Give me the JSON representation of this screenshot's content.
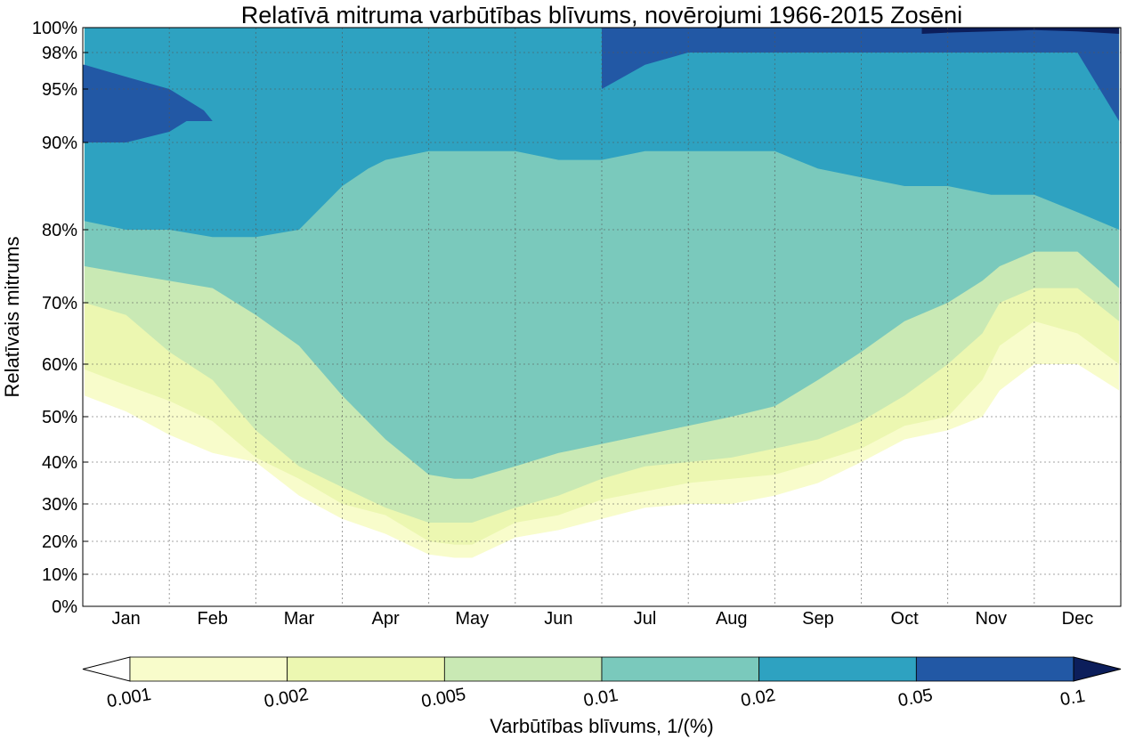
{
  "chart_data": {
    "type": "contour",
    "title": "Relatīvā mitruma varbūtības blīvums, novērojumi 1966-2015 Zosēni",
    "xlabel": "",
    "ylabel": "Relatīvais mitrums",
    "x_unit": "month",
    "x_range": [
      0,
      12
    ],
    "categories": [
      "Jan",
      "Feb",
      "Mar",
      "Apr",
      "May",
      "Jun",
      "Jul",
      "Aug",
      "Sep",
      "Oct",
      "Nov",
      "Dec"
    ],
    "y_scale": "probability-like (expanded near 100%)",
    "y_ticks": [
      "0%",
      "10%",
      "20%",
      "30%",
      "40%",
      "50%",
      "60%",
      "70%",
      "80%",
      "90%",
      "95%",
      "98%",
      "100%"
    ],
    "y_tick_values": [
      0,
      10,
      20,
      30,
      40,
      50,
      60,
      70,
      80,
      90,
      95,
      98,
      100
    ],
    "grid": true,
    "levels": [
      0.001,
      0.002,
      0.005,
      0.01,
      0.02,
      0.05,
      0.1
    ],
    "level_colors": [
      "#ffffff",
      "#f8fccb",
      "#ecf7b1",
      "#c9e9b4",
      "#7ac9bc",
      "#2ea2c1",
      "#2258a5",
      "#0c1e5b"
    ],
    "colorbar": {
      "label": "Varbūtības blīvums, 1/(%)",
      "tick_labels": [
        "0.001",
        "0.002",
        "0.005",
        "0.01",
        "0.02",
        "0.05",
        "0.1"
      ],
      "extend": "both",
      "orientation": "horizontal",
      "position": "bottom"
    },
    "contours": [
      {
        "level": 0.001,
        "month": [
          0.02,
          0.5,
          1.0,
          1.5,
          2.0,
          2.5,
          3.0,
          3.5,
          4.0,
          4.3,
          4.5,
          5.0,
          5.5,
          6.0,
          6.5,
          7.0,
          7.5,
          8.0,
          8.5,
          9.0,
          9.5,
          10.0,
          10.4,
          10.6,
          11.0,
          11.5,
          11.98
        ],
        "rh": [
          54,
          51,
          46,
          42,
          40,
          32,
          26,
          22,
          16,
          15,
          15,
          21,
          23,
          26,
          29,
          30,
          30,
          32,
          35,
          40,
          45,
          47,
          50,
          55,
          60,
          60,
          55
        ]
      },
      {
        "level": 0.002,
        "month": [
          0.02,
          0.5,
          1.0,
          1.5,
          2.0,
          2.5,
          3.0,
          3.5,
          4.0,
          4.3,
          4.5,
          5.0,
          5.5,
          6.0,
          6.5,
          7.0,
          7.5,
          8.0,
          8.5,
          9.0,
          9.5,
          10.0,
          10.4,
          10.6,
          11.0,
          11.5,
          11.98
        ],
        "rh": [
          59,
          56,
          53,
          49,
          41,
          36,
          30,
          27,
          20,
          19,
          19,
          25,
          27,
          31,
          33,
          35,
          36,
          37,
          40,
          43,
          48,
          50,
          57,
          63,
          67,
          65,
          60
        ]
      },
      {
        "level": 0.005,
        "month": [
          0.02,
          0.5,
          1.0,
          1.5,
          2.0,
          2.5,
          3.0,
          3.5,
          4.0,
          4.3,
          4.5,
          5.0,
          5.5,
          6.0,
          6.5,
          7.0,
          7.5,
          8.0,
          8.5,
          9.0,
          9.5,
          10.0,
          10.4,
          10.6,
          11.0,
          11.5,
          11.98
        ],
        "rh": [
          70,
          68,
          62,
          57,
          47,
          39,
          34,
          29,
          25,
          25,
          25,
          29,
          32,
          36,
          39,
          40,
          41,
          43,
          45,
          49,
          54,
          60,
          65,
          70,
          72,
          72,
          67
        ]
      },
      {
        "level": 0.01,
        "month": [
          0.02,
          0.5,
          1.0,
          1.5,
          2.0,
          2.5,
          3.0,
          3.5,
          4.0,
          4.3,
          4.5,
          5.0,
          5.5,
          6.0,
          6.5,
          7.0,
          7.5,
          8.0,
          8.5,
          9.0,
          9.5,
          10.0,
          10.4,
          10.6,
          11.0,
          11.5,
          11.98
        ],
        "rh": [
          75,
          74,
          73,
          72,
          68,
          63,
          54,
          45,
          37,
          36,
          36,
          39,
          42,
          44,
          46,
          48,
          50,
          52,
          57,
          62,
          67,
          70,
          73,
          75,
          77,
          77,
          72
        ]
      },
      {
        "level": 0.02,
        "month": [
          0.02,
          0.5,
          1.0,
          1.5,
          2.0,
          2.5,
          3.0,
          3.3,
          3.5,
          4.0,
          4.5,
          5.0,
          5.5,
          6.0,
          6.5,
          7.0,
          7.5,
          8.0,
          8.5,
          9.0,
          9.5,
          10.0,
          10.5,
          11.0,
          11.5,
          11.98
        ],
        "rh": [
          81,
          80,
          80,
          79,
          79,
          80,
          85,
          87,
          88,
          89,
          89,
          89,
          88,
          88,
          89,
          89,
          89,
          89,
          87,
          86,
          85,
          85,
          84,
          84,
          82,
          80
        ]
      },
      {
        "level": 0.05,
        "month": [
          0.02,
          0.5,
          1.0,
          1.2,
          1.4,
          1.5,
          1.2,
          1.0,
          0.5,
          0.02
        ],
        "rh": [
          97,
          96,
          95,
          94,
          93,
          92,
          92,
          91,
          90,
          90
        ]
      },
      {
        "level": 0.05,
        "month": [
          6.0,
          6.5,
          7.0,
          7.5,
          8.0,
          8.5,
          9.0,
          9.5,
          10.0,
          10.5,
          11.0,
          11.5,
          11.98
        ],
        "rh": [
          95,
          97,
          98,
          98,
          98,
          98,
          98,
          98,
          98,
          98,
          98,
          98,
          92
        ]
      },
      {
        "level": 0.1,
        "month": [
          9.7,
          10.0,
          10.5,
          11.0,
          11.5,
          11.98
        ],
        "rh": [
          99.5,
          99.6,
          99.7,
          99.8,
          99.7,
          99.5
        ]
      }
    ]
  }
}
